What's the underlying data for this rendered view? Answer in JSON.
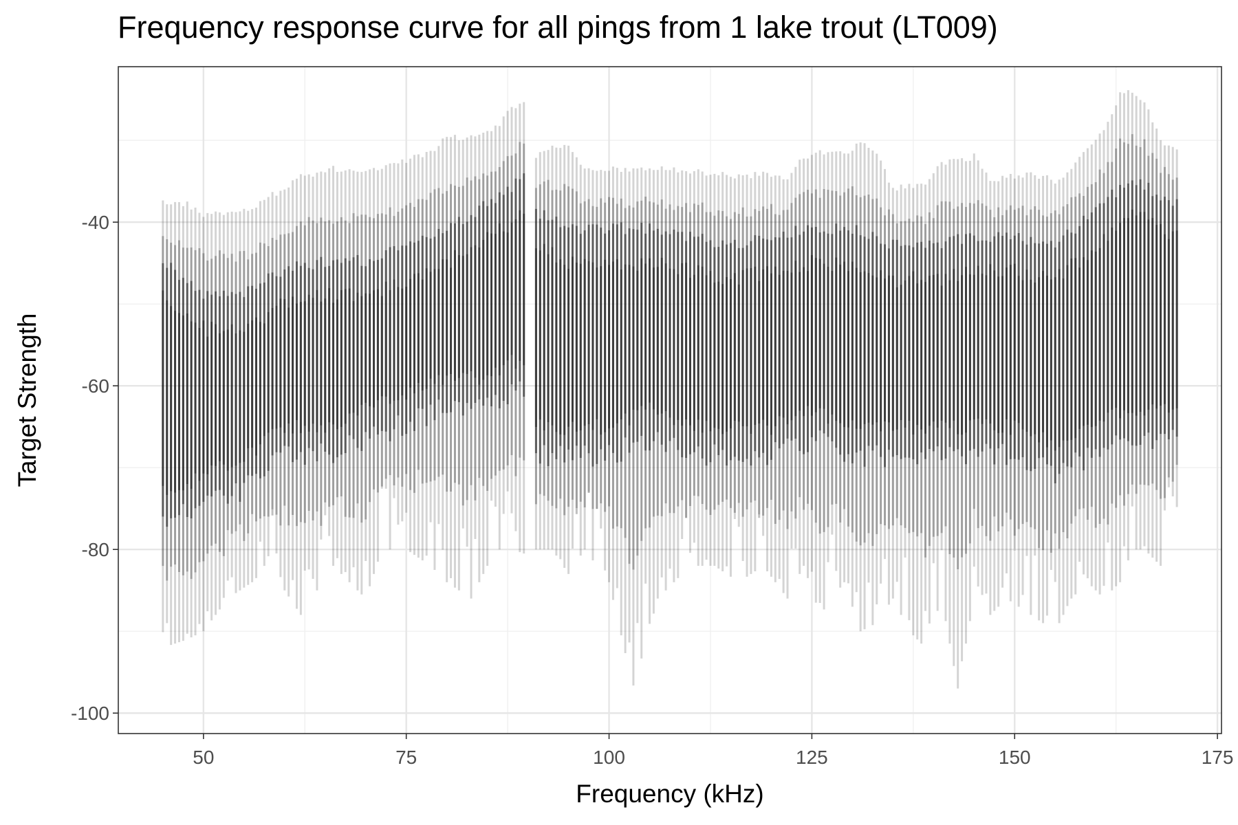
{
  "chart_data": {
    "type": "line",
    "title": "Frequency response curve for all pings from 1 lake trout (LT009)",
    "xlabel": "Frequency (kHz)",
    "ylabel": "Target Strength",
    "xlim": [
      39.5,
      175.5
    ],
    "ylim": [
      -102.5,
      -21
    ],
    "x_ticks": [
      50,
      75,
      100,
      125,
      150,
      175
    ],
    "y_ticks": [
      -100,
      -80,
      -60,
      -40
    ],
    "grid": true,
    "legend": "none",
    "bands": {
      "freq_ranges_khz": [
        [
          45,
          89.5
        ],
        [
          91,
          170
        ]
      ],
      "band_step_khz": 0.5,
      "light_envelope": {
        "x": [
          45,
          48,
          50,
          53,
          56,
          58,
          62,
          66,
          70,
          72,
          75,
          78,
          80,
          83,
          86,
          88,
          89.5,
          91,
          93,
          95,
          97,
          100,
          103,
          106,
          110,
          113,
          116,
          119,
          122,
          124,
          126,
          129,
          131,
          133,
          135,
          137,
          139,
          141,
          143,
          145,
          147,
          149,
          152,
          155,
          157,
          159,
          161,
          163,
          164.5,
          166,
          168,
          170
        ],
        "max": [
          -37.5,
          -37.8,
          -39,
          -38.8,
          -38.6,
          -37,
          -34.5,
          -33.4,
          -34,
          -33.5,
          -32.5,
          -31.5,
          -29.7,
          -29.5,
          -28.5,
          -26,
          -25.6,
          -32,
          -30.5,
          -31,
          -33.5,
          -33.5,
          -33.6,
          -33.5,
          -33.8,
          -34,
          -34.5,
          -34,
          -35,
          -32,
          -31.5,
          -31.5,
          -30.5,
          -31.5,
          -36,
          -35.5,
          -35.5,
          -32.8,
          -32.5,
          -32,
          -35,
          -34.6,
          -34,
          -35,
          -33.5,
          -31,
          -28.5,
          -24.5,
          -24,
          -25,
          -30,
          -31
        ],
        "min": [
          -92,
          -91,
          -90,
          -86,
          -84,
          -82,
          -88,
          -82,
          -86,
          -80,
          -80,
          -82,
          -84,
          -86,
          -80,
          -80,
          -80.5,
          -80,
          -80,
          -83,
          -80,
          -84,
          -97,
          -86,
          -82,
          -82,
          -84,
          -82,
          -86,
          -82,
          -88,
          -84,
          -90,
          -89,
          -86,
          -90,
          -92,
          -86,
          -97,
          -86,
          -88,
          -86,
          -88,
          -90,
          -86,
          -84,
          -86,
          -84,
          -80,
          -80,
          -82,
          -75
        ]
      },
      "dark_envelope": {
        "x": [
          45,
          50,
          55,
          60,
          65,
          70,
          75,
          80,
          85,
          88,
          89.5,
          91,
          95,
          100,
          105,
          110,
          115,
          120,
          125,
          130,
          135,
          140,
          145,
          150,
          155,
          160,
          163,
          165,
          168,
          170
        ],
        "max": [
          -44,
          -48,
          -48,
          -45,
          -44,
          -44,
          -42,
          -40,
          -37,
          -35,
          -34,
          -38,
          -40,
          -40,
          -40,
          -41,
          -42,
          -41,
          -40,
          -40,
          -42,
          -42,
          -41,
          -41,
          -42,
          -38,
          -35,
          -34,
          -36,
          -37
        ],
        "min": [
          -78,
          -76,
          -74,
          -70,
          -70,
          -68,
          -66,
          -64,
          -64,
          -62,
          -62,
          -70,
          -70,
          -70,
          -68,
          -70,
          -70,
          -70,
          -68,
          -70,
          -70,
          -70,
          -70,
          -70,
          -72,
          -70,
          -68,
          -68,
          -68,
          -68
        ]
      }
    }
  }
}
